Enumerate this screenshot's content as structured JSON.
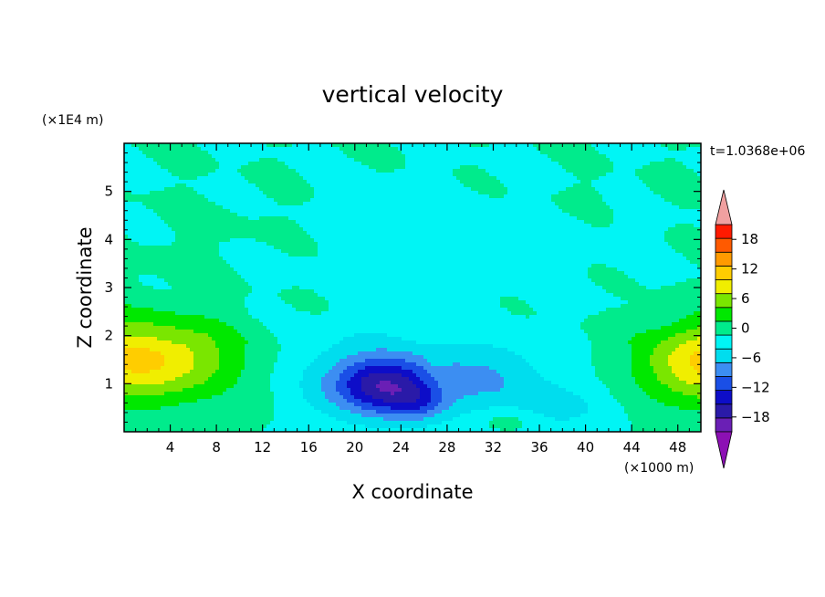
{
  "chart_data": {
    "type": "heatmap",
    "title": "vertical velocity",
    "xlabel": "X coordinate",
    "ylabel": "Z coordinate",
    "x_unit_label": "(×1000 m)",
    "y_unit_label": "(×1E4 m)",
    "time_label": "t=1.0368e+06",
    "xlim": [
      0,
      50
    ],
    "ylim": [
      0,
      6
    ],
    "x_ticks": [
      4,
      8,
      12,
      16,
      20,
      24,
      28,
      32,
      36,
      40,
      44,
      48
    ],
    "x_tick_labels": [
      "4",
      "8",
      "12",
      "16",
      "20",
      "24",
      "28",
      "32",
      "36",
      "40",
      "44",
      "48"
    ],
    "y_ticks": [
      1,
      2,
      3,
      4,
      5
    ],
    "y_tick_labels": [
      "1",
      "2",
      "3",
      "4",
      "5"
    ],
    "colorbar": {
      "levels": [
        -21,
        -18,
        -15,
        -12,
        -9,
        -6,
        -3,
        0,
        3,
        6,
        9,
        12,
        15,
        18,
        21
      ],
      "tick_values": [
        -18,
        -12,
        -6,
        0,
        6,
        12,
        18
      ],
      "tick_labels": [
        "−18",
        "−12",
        "−6",
        "0",
        "6",
        "12",
        "18"
      ],
      "colors": [
        "#6a1fb5",
        "#2a1aa8",
        "#0d0dc8",
        "#1a4fe6",
        "#3c8ef2",
        "#00ddee",
        "#00f5f5",
        "#00eb8c",
        "#00e800",
        "#7ae600",
        "#f0ee00",
        "#ffcd00",
        "#ff9a00",
        "#ff5a00",
        "#ff1a00"
      ],
      "under_color": "#8c10b4",
      "over_color": "#f0a0a0"
    },
    "features": [
      {
        "x": 1.5,
        "z": 1.5,
        "value": 13,
        "sx": 8,
        "sz": 0.85
      },
      {
        "x": 50.5,
        "z": 1.45,
        "value": 13,
        "sx": 5.5,
        "sz": 0.85
      },
      {
        "x": 22.5,
        "z": 0.95,
        "value": -12.5,
        "sx": 4.2,
        "sz": 0.55
      },
      {
        "x": 25.5,
        "z": 0.6,
        "value": -5,
        "sx": 2.5,
        "sz": 0.35
      },
      {
        "x": 22,
        "z": 1.1,
        "value": -5.5,
        "sx": 8,
        "sz": 1
      },
      {
        "x": 32,
        "z": 1.1,
        "value": -5,
        "sx": 5,
        "sz": 0.75
      },
      {
        "x": 38,
        "z": 0.5,
        "value": -3.5,
        "sx": 4,
        "sz": 0.5
      },
      {
        "x": 33,
        "z": 0.25,
        "value": 3,
        "sx": 2.5,
        "sz": 0.25
      },
      {
        "x": 27,
        "z": 1.3,
        "value": 1.5,
        "sx": 1,
        "sz": 0.4
      },
      {
        "x": 13,
        "z": 0.5,
        "value": 0.7,
        "sx": 2,
        "sz": 0.6
      },
      {
        "x": 29,
        "z": 3.9,
        "value": -1.4,
        "sx": 15,
        "sz": 1.4
      },
      {
        "x": 10,
        "z": 4.3,
        "value": 0.6,
        "sx": 7,
        "sz": 0.6
      },
      {
        "x": 40,
        "z": 4.9,
        "value": 0.6,
        "sx": 8,
        "sz": 0.4
      },
      {
        "x": 4,
        "z": 3.4,
        "value": 0.5,
        "sx": 5,
        "sz": 0.6
      }
    ]
  }
}
